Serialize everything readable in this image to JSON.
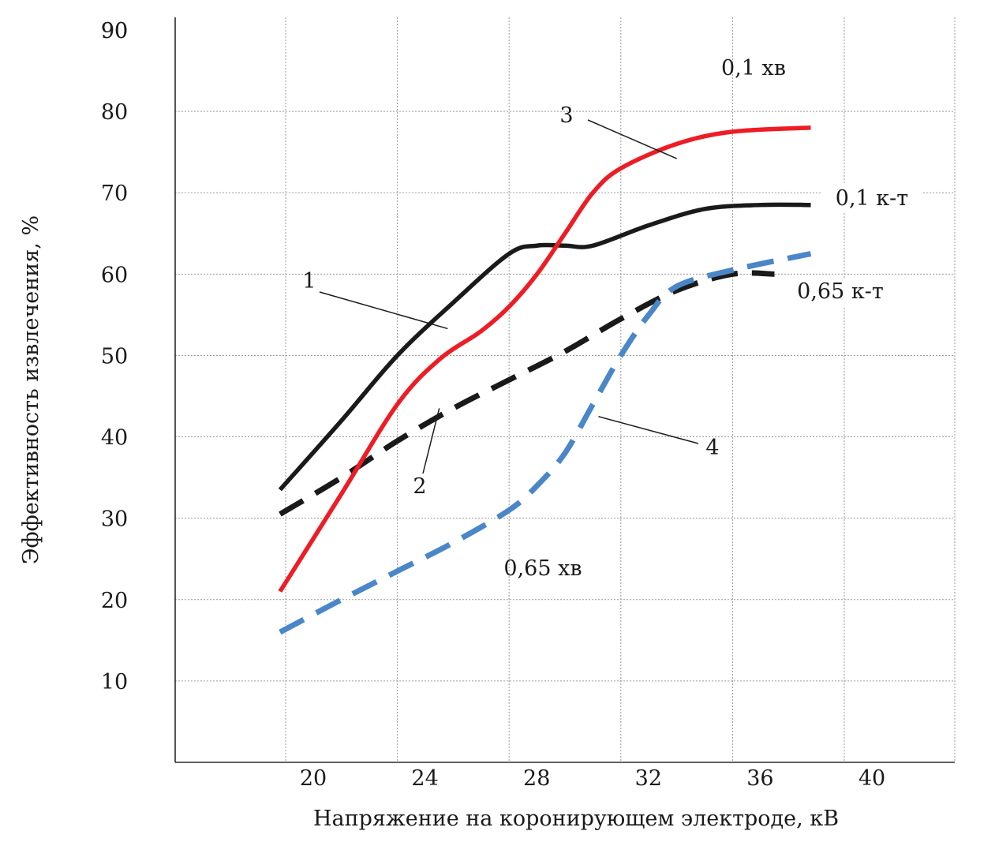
{
  "chart_data": {
    "type": "line",
    "title": "",
    "xlabel": "Напряжение на коронирующем электроде, кВ",
    "ylabel": "Эффективность извлечения, %",
    "xticks": [
      "20",
      "24",
      "28",
      "32",
      "36",
      "40"
    ],
    "yticks": [
      "10",
      "20",
      "30",
      "40",
      "50",
      "60",
      "70",
      "80",
      "90"
    ],
    "xlim": [
      16,
      44
    ],
    "ylim": [
      0,
      90
    ],
    "grid": true,
    "series": [
      {
        "id": "1",
        "color": "#1a1a1a",
        "style": "solid",
        "x": [
          19.8,
          22,
          24,
          26,
          28,
          29,
          30,
          31,
          33,
          35,
          37,
          38.8
        ],
        "y": [
          33.5,
          42,
          50,
          56.5,
          62.5,
          63.5,
          63.5,
          63.5,
          66,
          68,
          68.5,
          68.5
        ]
      },
      {
        "id": "2",
        "color": "#1a1a1a",
        "style": "dashed",
        "x": [
          19.8,
          22,
          24,
          26,
          28,
          30,
          32,
          34,
          36,
          37.5
        ],
        "y": [
          30.5,
          35,
          39.5,
          43.5,
          47,
          50.5,
          54.5,
          58,
          60,
          60
        ]
      },
      {
        "id": "3",
        "color": "#ee1c25",
        "style": "solid",
        "x": [
          19.8,
          22,
          24,
          25.5,
          27,
          28,
          29,
          30,
          31,
          32,
          34,
          36,
          38.8
        ],
        "y": [
          21,
          33,
          44,
          49.5,
          53,
          56,
          60,
          65,
          70,
          73,
          76,
          77.5,
          78
        ]
      },
      {
        "id": "4",
        "color": "#4a86c8",
        "style": "dashed",
        "x": [
          19.8,
          22,
          24,
          26,
          28,
          29,
          30,
          31,
          32,
          33,
          34,
          36,
          38.8
        ],
        "y": [
          16,
          20,
          23.5,
          27,
          31,
          34,
          38,
          44,
          50,
          55,
          58.5,
          60.5,
          62.5
        ]
      }
    ],
    "annotations": [
      "1",
      "2",
      "3",
      "4",
      "0,1 хв",
      "0,1 к-т",
      "0,65 к-т",
      "0,65 хв"
    ]
  }
}
